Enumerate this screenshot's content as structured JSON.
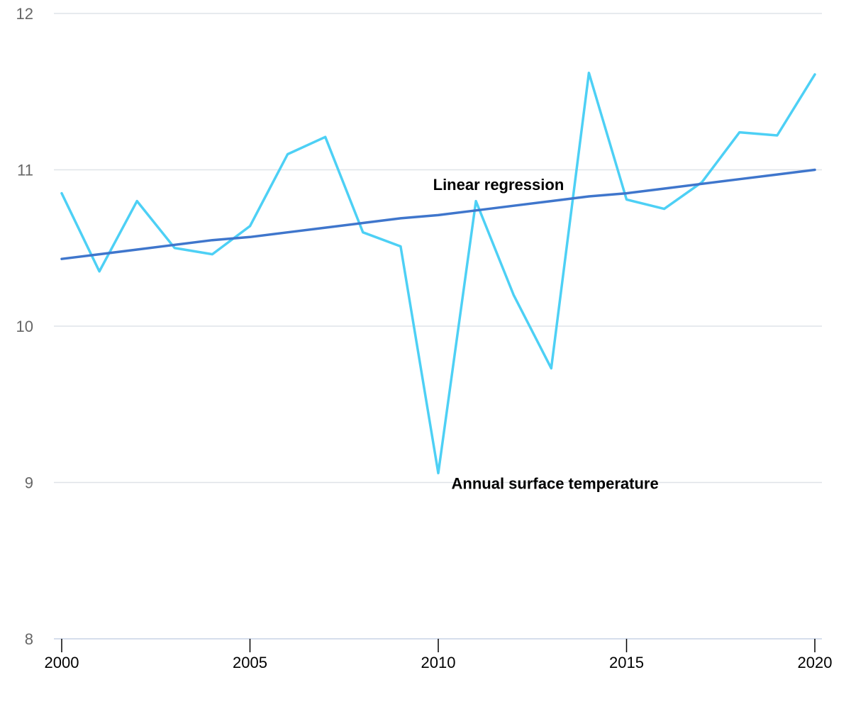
{
  "chart_data": {
    "type": "line",
    "title": "",
    "xlabel": "",
    "ylabel": "",
    "x": [
      2000,
      2001,
      2002,
      2003,
      2004,
      2005,
      2006,
      2007,
      2008,
      2009,
      2010,
      2011,
      2012,
      2013,
      2014,
      2015,
      2016,
      2017,
      2018,
      2019,
      2020
    ],
    "xlim": [
      2000,
      2020
    ],
    "ylim": [
      8,
      12
    ],
    "x_ticks": [
      2000,
      2005,
      2010,
      2015,
      2020
    ],
    "y_ticks": [
      8,
      9,
      10,
      11,
      12
    ],
    "grid": true,
    "legend": "none",
    "series": [
      {
        "name": "Annual surface temperature",
        "color": "#4dd0f5",
        "values": [
          10.85,
          10.35,
          10.8,
          10.5,
          10.46,
          10.64,
          11.1,
          11.21,
          10.6,
          10.51,
          9.06,
          10.8,
          10.2,
          9.73,
          11.62,
          10.81,
          10.75,
          10.92,
          11.24,
          11.22,
          11.61
        ]
      },
      {
        "name": "Linear regression",
        "color": "#3f76cc",
        "values": [
          10.43,
          10.46,
          10.49,
          10.52,
          10.55,
          10.57,
          10.6,
          10.63,
          10.66,
          10.69,
          10.71,
          10.74,
          10.77,
          10.8,
          10.83,
          10.85,
          10.88,
          10.91,
          10.94,
          10.97,
          11.0
        ]
      }
    ],
    "annotations": [
      {
        "text": "Linear regression",
        "series": 1,
        "x": 2011.6,
        "y": 10.87
      },
      {
        "text": "Annual surface temperature",
        "series": 0,
        "x": 2013.1,
        "y": 8.96
      }
    ]
  }
}
